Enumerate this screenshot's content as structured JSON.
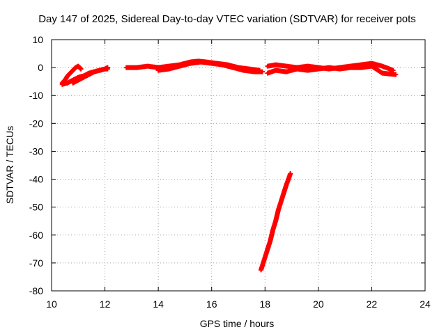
{
  "chart_data": {
    "type": "scatter",
    "title": "Day 147 of 2025, Sidereal Day-to-day VTEC variation (SDTVAR) for receiver pots",
    "xlabel": "GPS time / hours",
    "ylabel": "SDTVAR / TECUs",
    "xlim": [
      10,
      24
    ],
    "ylim": [
      -80,
      10
    ],
    "xticks": [
      "10",
      "12",
      "14",
      "16",
      "18",
      "20",
      "22",
      "24"
    ],
    "yticks": [
      "10",
      "0",
      "-10",
      "-20",
      "-30",
      "-40",
      "-50",
      "-60",
      "-70",
      "-80"
    ],
    "grid": true,
    "marker": "+",
    "series": [
      {
        "name": "SDTVAR",
        "color": "#ff0000",
        "segments": [
          {
            "x": [
              10.4,
              10.5,
              10.6,
              10.7,
              10.8,
              10.9,
              11.0,
              11.1
            ],
            "y": [
              -5.5,
              -4.5,
              -3.0,
              -2.0,
              -1.0,
              0.0,
              0.5,
              -0.5
            ]
          },
          {
            "x": [
              10.4,
              10.6,
              10.8,
              11.0,
              11.2,
              11.4,
              11.6,
              11.8,
              12.0,
              12.1
            ],
            "y": [
              -6.0,
              -5.5,
              -4.5,
              -3.5,
              -3.0,
              -2.0,
              -1.5,
              -1.0,
              -0.5,
              -0.5
            ]
          },
          {
            "x": [
              10.8,
              11.0,
              11.2,
              11.4,
              11.6,
              11.8,
              12.0,
              12.1
            ],
            "y": [
              -5.5,
              -4.5,
              -3.5,
              -2.5,
              -1.5,
              -1.0,
              -0.5,
              0.0
            ]
          },
          {
            "x": [
              12.8,
              13.2,
              13.6,
              14.0,
              14.4,
              14.8,
              15.2,
              15.5,
              15.8,
              16.2,
              16.6,
              17.0,
              17.4,
              17.8
            ],
            "y": [
              0.0,
              0.0,
              0.5,
              0.0,
              0.5,
              1.0,
              2.0,
              2.3,
              2.0,
              1.5,
              1.0,
              0.0,
              -0.5,
              -1.0
            ]
          },
          {
            "x": [
              14.0,
              14.4,
              14.8,
              15.2,
              15.6,
              16.0,
              16.4,
              16.8,
              17.2,
              17.6,
              17.9
            ],
            "y": [
              -1.0,
              -0.5,
              0.5,
              1.5,
              2.0,
              1.5,
              1.0,
              0.0,
              -1.0,
              -1.5,
              -1.5
            ]
          },
          {
            "x": [
              18.1,
              18.4,
              18.8,
              19.2,
              19.6,
              20.0,
              20.4,
              20.8,
              21.2,
              21.6,
              22.0,
              22.4,
              22.8
            ],
            "y": [
              0.5,
              1.0,
              0.5,
              0.0,
              0.5,
              0.0,
              -0.5,
              0.0,
              0.5,
              1.0,
              1.5,
              0.5,
              -1.0
            ]
          },
          {
            "x": [
              18.1,
              18.4,
              18.8,
              19.2,
              19.6,
              20.0,
              20.4,
              20.8,
              21.2,
              21.6,
              22.0,
              22.4,
              22.9
            ],
            "y": [
              -2.0,
              -1.0,
              -1.5,
              -0.5,
              -1.0,
              -0.5,
              0.0,
              -0.5,
              0.0,
              0.0,
              0.5,
              -2.0,
              -2.5
            ]
          },
          {
            "x": [
              17.85,
              18.0,
              18.1,
              18.2,
              18.3,
              18.4,
              18.5,
              18.6,
              18.7,
              18.8,
              18.9,
              18.95
            ],
            "y": [
              -72.5,
              -68.0,
              -65.0,
              -62.0,
              -58.0,
              -55.0,
              -51.0,
              -48.0,
              -45.0,
              -42.0,
              -39.5,
              -38.0
            ]
          }
        ]
      }
    ]
  }
}
